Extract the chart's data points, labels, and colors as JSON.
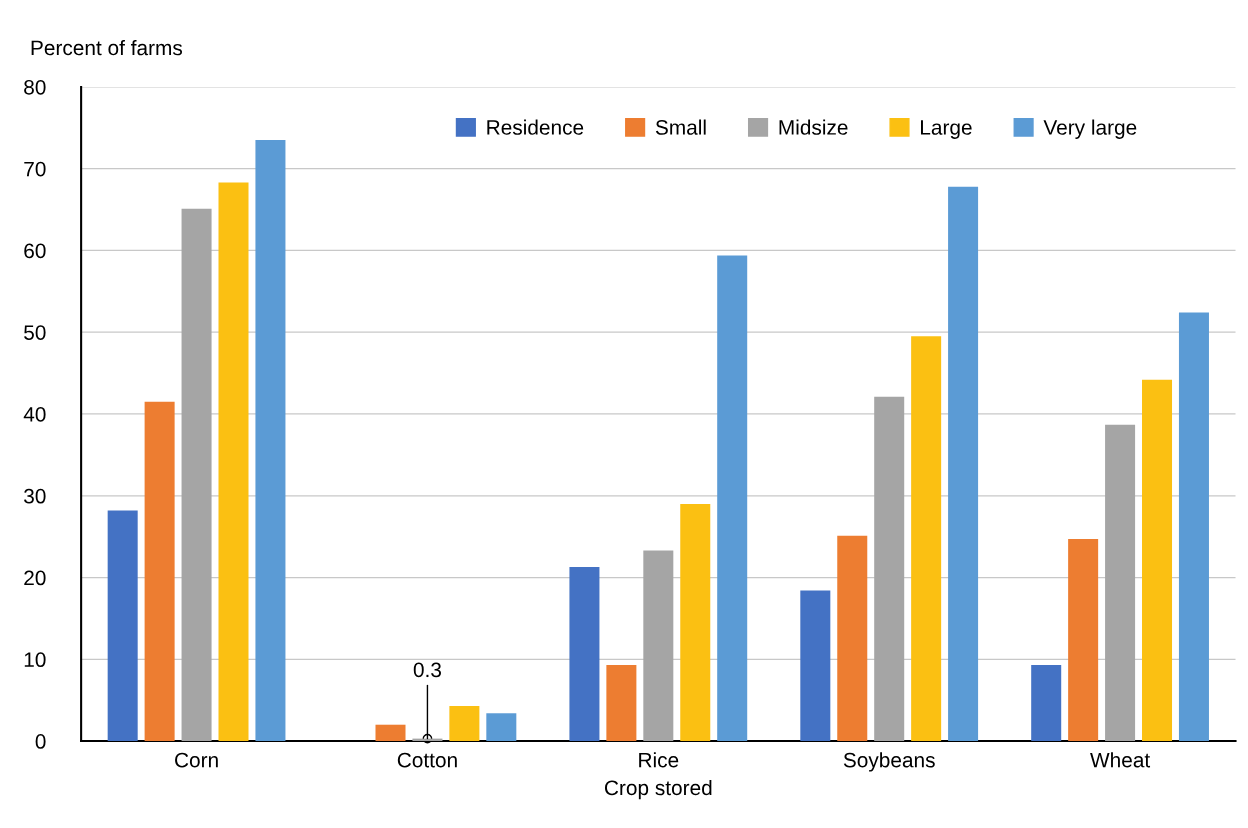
{
  "chart_data": {
    "type": "bar",
    "ylabel": "Percent of farms",
    "xlabel": "Crop stored",
    "categories": [
      "Corn",
      "Cotton",
      "Rice",
      "Soybeans",
      "Wheat"
    ],
    "series": [
      {
        "name": "Residence",
        "color": "#4472c4",
        "values": [
          28.2,
          null,
          21.3,
          18.4,
          9.3
        ]
      },
      {
        "name": "Small",
        "color": "#ed7d31",
        "values": [
          41.5,
          2.0,
          9.3,
          25.1,
          24.7
        ]
      },
      {
        "name": "Midsize",
        "color": "#a5a5a5",
        "values": [
          65.1,
          0.3,
          23.3,
          42.1,
          38.7
        ]
      },
      {
        "name": "Large",
        "color": "#fbc012",
        "values": [
          68.3,
          4.3,
          29.0,
          49.5,
          44.2
        ]
      },
      {
        "name": "Very large",
        "color": "#5b9bd5",
        "values": [
          73.5,
          3.4,
          59.4,
          67.8,
          52.4
        ]
      }
    ],
    "annotations": [
      {
        "text": "0.3",
        "x": "Cotton",
        "y": 0.3
      }
    ],
    "ylim": [
      0,
      80
    ],
    "yticks": [
      0,
      10,
      20,
      30,
      40,
      50,
      60,
      70,
      80
    ],
    "grid": "y",
    "legend": "top"
  }
}
